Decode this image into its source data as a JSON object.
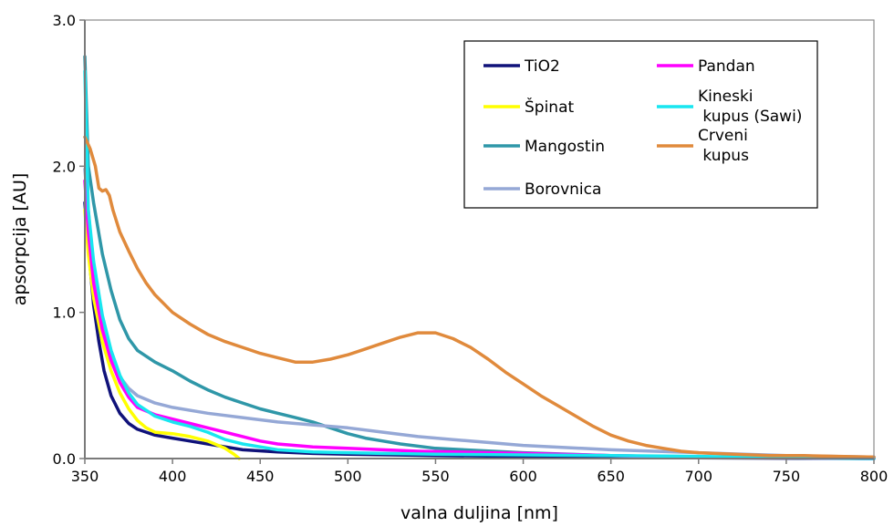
{
  "chart_data": {
    "type": "line",
    "title": "",
    "xlabel": "valna duljina [nm]",
    "ylabel": "apsorpcija [AU]",
    "xlim": [
      350,
      800
    ],
    "ylim": [
      0,
      3
    ],
    "x_ticks": [
      "350",
      "400",
      "450",
      "500",
      "550",
      "600",
      "650",
      "700",
      "750",
      "800"
    ],
    "y_ticks": [
      "0.0",
      "1.0",
      "2.0",
      "3.0"
    ],
    "grid": false,
    "legend_position": "top-right",
    "series": [
      {
        "name": "TiO2",
        "color": "#10127a",
        "points": [
          [
            350,
            1.75
          ],
          [
            352,
            1.45
          ],
          [
            355,
            1.05
          ],
          [
            358,
            0.8
          ],
          [
            361,
            0.6
          ],
          [
            365,
            0.43
          ],
          [
            370,
            0.31
          ],
          [
            375,
            0.24
          ],
          [
            380,
            0.2
          ],
          [
            385,
            0.18
          ],
          [
            390,
            0.16
          ],
          [
            400,
            0.14
          ],
          [
            410,
            0.12
          ],
          [
            420,
            0.1
          ],
          [
            430,
            0.08
          ],
          [
            440,
            0.06
          ],
          [
            460,
            0.045
          ],
          [
            480,
            0.035
          ],
          [
            500,
            0.03
          ],
          [
            550,
            0.02
          ],
          [
            600,
            0.015
          ],
          [
            650,
            0.01
          ],
          [
            700,
            0.005
          ],
          [
            800,
            0.0
          ]
        ]
      },
      {
        "name": "Špinat",
        "color": "#ffff00",
        "points": [
          [
            350,
            1.7
          ],
          [
            352,
            1.4
          ],
          [
            355,
            1.1
          ],
          [
            360,
            0.8
          ],
          [
            365,
            0.6
          ],
          [
            370,
            0.45
          ],
          [
            375,
            0.34
          ],
          [
            380,
            0.26
          ],
          [
            385,
            0.21
          ],
          [
            390,
            0.18
          ],
          [
            400,
            0.17
          ],
          [
            410,
            0.15
          ],
          [
            420,
            0.12
          ],
          [
            430,
            0.07
          ],
          [
            435,
            0.03
          ],
          [
            438,
            0.0
          ]
        ]
      },
      {
        "name": "Mangostin",
        "color": "#2f97a8",
        "points": [
          [
            350,
            2.75
          ],
          [
            352,
            2.0
          ],
          [
            355,
            1.75
          ],
          [
            360,
            1.4
          ],
          [
            365,
            1.15
          ],
          [
            370,
            0.95
          ],
          [
            375,
            0.82
          ],
          [
            380,
            0.74
          ],
          [
            390,
            0.66
          ],
          [
            400,
            0.6
          ],
          [
            410,
            0.53
          ],
          [
            420,
            0.47
          ],
          [
            430,
            0.42
          ],
          [
            440,
            0.38
          ],
          [
            450,
            0.34
          ],
          [
            460,
            0.31
          ],
          [
            470,
            0.28
          ],
          [
            480,
            0.25
          ],
          [
            490,
            0.21
          ],
          [
            500,
            0.17
          ],
          [
            510,
            0.14
          ],
          [
            520,
            0.12
          ],
          [
            530,
            0.1
          ],
          [
            550,
            0.07
          ],
          [
            600,
            0.04
          ],
          [
            650,
            0.02
          ],
          [
            700,
            0.01
          ],
          [
            800,
            0.0
          ]
        ]
      },
      {
        "name": "Borovnica",
        "color": "#95a8d6",
        "points": [
          [
            350,
            1.98
          ],
          [
            352,
            1.7
          ],
          [
            355,
            1.3
          ],
          [
            360,
            0.92
          ],
          [
            365,
            0.7
          ],
          [
            370,
            0.56
          ],
          [
            375,
            0.48
          ],
          [
            380,
            0.43
          ],
          [
            390,
            0.38
          ],
          [
            400,
            0.35
          ],
          [
            420,
            0.31
          ],
          [
            440,
            0.28
          ],
          [
            460,
            0.25
          ],
          [
            480,
            0.23
          ],
          [
            500,
            0.21
          ],
          [
            520,
            0.18
          ],
          [
            540,
            0.15
          ],
          [
            560,
            0.13
          ],
          [
            580,
            0.11
          ],
          [
            600,
            0.09
          ],
          [
            650,
            0.06
          ],
          [
            700,
            0.04
          ],
          [
            750,
            0.02
          ],
          [
            800,
            0.01
          ]
        ]
      },
      {
        "name": "Pandan",
        "color": "#ff00ff",
        "points": [
          [
            350,
            1.9
          ],
          [
            352,
            1.55
          ],
          [
            355,
            1.2
          ],
          [
            360,
            0.88
          ],
          [
            365,
            0.67
          ],
          [
            370,
            0.52
          ],
          [
            375,
            0.42
          ],
          [
            380,
            0.35
          ],
          [
            390,
            0.3
          ],
          [
            400,
            0.27
          ],
          [
            410,
            0.24
          ],
          [
            420,
            0.21
          ],
          [
            430,
            0.18
          ],
          [
            440,
            0.15
          ],
          [
            450,
            0.12
          ],
          [
            460,
            0.1
          ],
          [
            480,
            0.08
          ],
          [
            500,
            0.07
          ],
          [
            520,
            0.06
          ],
          [
            540,
            0.05
          ],
          [
            560,
            0.045
          ],
          [
            580,
            0.04
          ],
          [
            600,
            0.035
          ],
          [
            620,
            0.03
          ],
          [
            650,
            0.02
          ],
          [
            700,
            0.01
          ],
          [
            800,
            0.0
          ]
        ]
      },
      {
        "name": "Kineski kupus (Sawi)",
        "color": "#18e6f0",
        "points": [
          [
            350,
            2.65
          ],
          [
            352,
            1.7
          ],
          [
            355,
            1.35
          ],
          [
            360,
            0.98
          ],
          [
            365,
            0.74
          ],
          [
            370,
            0.57
          ],
          [
            375,
            0.45
          ],
          [
            380,
            0.37
          ],
          [
            390,
            0.29
          ],
          [
            400,
            0.25
          ],
          [
            410,
            0.22
          ],
          [
            420,
            0.18
          ],
          [
            430,
            0.13
          ],
          [
            440,
            0.1
          ],
          [
            450,
            0.08
          ],
          [
            460,
            0.06
          ],
          [
            480,
            0.045
          ],
          [
            500,
            0.04
          ],
          [
            520,
            0.035
          ],
          [
            550,
            0.03
          ],
          [
            600,
            0.025
          ],
          [
            650,
            0.02
          ],
          [
            700,
            0.015
          ],
          [
            750,
            0.005
          ],
          [
            800,
            0.0
          ]
        ]
      },
      {
        "name": "Crveni kupus",
        "color": "#e08a3c",
        "points": [
          [
            350,
            2.2
          ],
          [
            353,
            2.12
          ],
          [
            356,
            2.0
          ],
          [
            358,
            1.85
          ],
          [
            360,
            1.83
          ],
          [
            362,
            1.84
          ],
          [
            364,
            1.8
          ],
          [
            366,
            1.7
          ],
          [
            370,
            1.55
          ],
          [
            375,
            1.42
          ],
          [
            380,
            1.3
          ],
          [
            385,
            1.2
          ],
          [
            390,
            1.12
          ],
          [
            400,
            1.0
          ],
          [
            410,
            0.92
          ],
          [
            420,
            0.85
          ],
          [
            430,
            0.8
          ],
          [
            440,
            0.76
          ],
          [
            450,
            0.72
          ],
          [
            460,
            0.69
          ],
          [
            470,
            0.66
          ],
          [
            480,
            0.66
          ],
          [
            490,
            0.68
          ],
          [
            500,
            0.71
          ],
          [
            510,
            0.75
          ],
          [
            520,
            0.79
          ],
          [
            530,
            0.83
          ],
          [
            540,
            0.86
          ],
          [
            550,
            0.86
          ],
          [
            560,
            0.82
          ],
          [
            570,
            0.76
          ],
          [
            580,
            0.68
          ],
          [
            590,
            0.59
          ],
          [
            600,
            0.51
          ],
          [
            610,
            0.43
          ],
          [
            620,
            0.36
          ],
          [
            630,
            0.29
          ],
          [
            640,
            0.22
          ],
          [
            650,
            0.16
          ],
          [
            660,
            0.12
          ],
          [
            670,
            0.09
          ],
          [
            680,
            0.07
          ],
          [
            690,
            0.05
          ],
          [
            700,
            0.04
          ],
          [
            720,
            0.03
          ],
          [
            740,
            0.02
          ],
          [
            760,
            0.02
          ],
          [
            780,
            0.015
          ],
          [
            800,
            0.01
          ]
        ]
      }
    ]
  }
}
